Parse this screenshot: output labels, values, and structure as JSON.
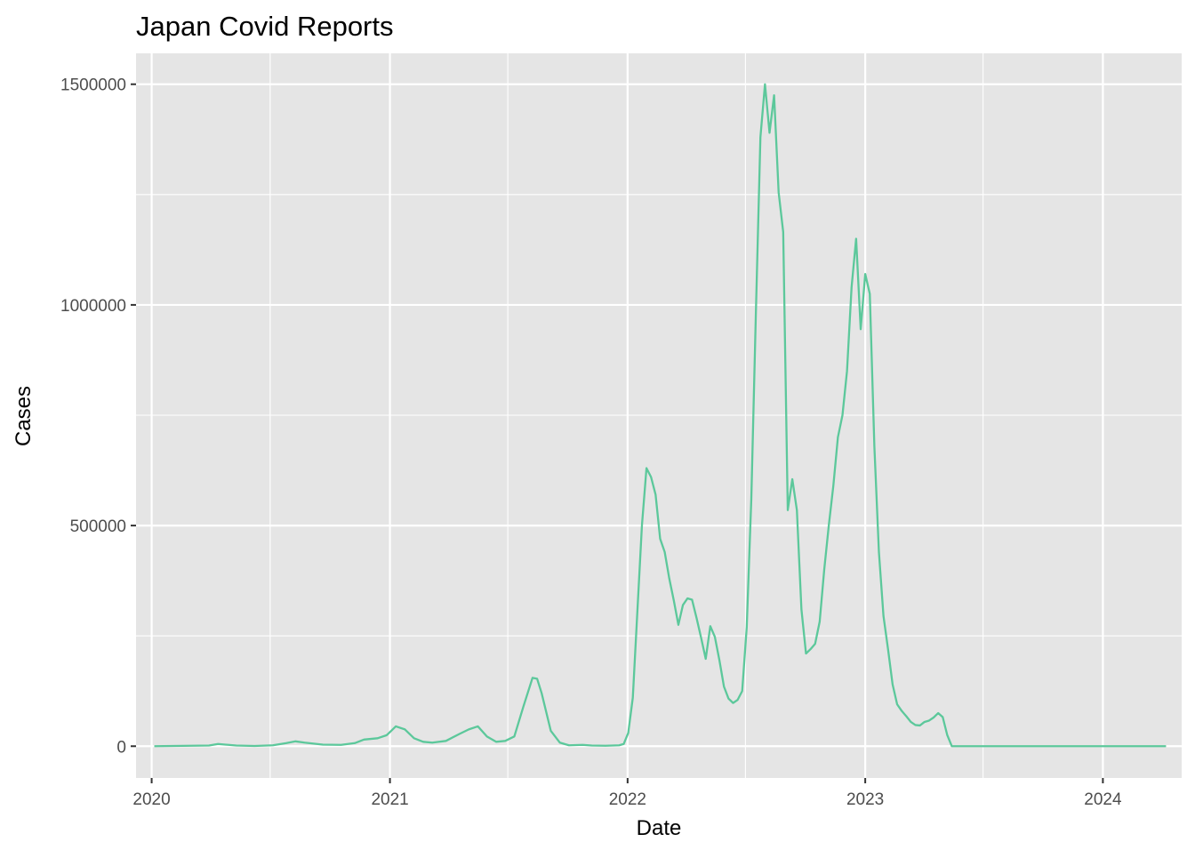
{
  "chart_data": {
    "type": "line",
    "title": "Japan Covid Reports",
    "xlabel": "Date",
    "ylabel": "Cases",
    "x_type": "date",
    "xlim": [
      "2019-12-08",
      "2024-05-01"
    ],
    "ylim": [
      -72000,
      1570000
    ],
    "x_ticks": [
      {
        "label": "2020",
        "value": "2020-01-01"
      },
      {
        "label": "2021",
        "value": "2021-01-01"
      },
      {
        "label": "2022",
        "value": "2022-01-01"
      },
      {
        "label": "2023",
        "value": "2023-01-01"
      },
      {
        "label": "2024",
        "value": "2024-01-01"
      }
    ],
    "x_minor_ticks": [
      "2020-07-01",
      "2021-07-01",
      "2022-07-01",
      "2023-07-01"
    ],
    "y_ticks": [
      0,
      500000,
      1000000,
      1500000
    ],
    "y_tick_labels": [
      "0",
      "500000",
      "1000000",
      "1500000"
    ],
    "y_minor_ticks": [
      250000,
      750000,
      1250000
    ],
    "grid": true,
    "colors": {
      "panel_background": "#e5e5e5",
      "gridline": "#ffffff",
      "series": "#5cc89b"
    },
    "series": [
      {
        "color": "#5cc89b",
        "points": [
          [
            "2020-01-05",
            0
          ],
          [
            "2020-03-29",
            1500
          ],
          [
            "2020-04-12",
            5000
          ],
          [
            "2020-05-10",
            1500
          ],
          [
            "2020-06-07",
            500
          ],
          [
            "2020-07-05",
            2000
          ],
          [
            "2020-07-26",
            7000
          ],
          [
            "2020-08-09",
            11000
          ],
          [
            "2020-08-23",
            8000
          ],
          [
            "2020-09-20",
            3500
          ],
          [
            "2020-10-18",
            3000
          ],
          [
            "2020-11-08",
            7000
          ],
          [
            "2020-11-22",
            15000
          ],
          [
            "2020-12-13",
            18000
          ],
          [
            "2020-12-27",
            25000
          ],
          [
            "2021-01-03",
            35000
          ],
          [
            "2021-01-10",
            45000
          ],
          [
            "2021-01-24",
            38000
          ],
          [
            "2021-02-07",
            18000
          ],
          [
            "2021-02-21",
            10000
          ],
          [
            "2021-03-07",
            8000
          ],
          [
            "2021-03-28",
            12000
          ],
          [
            "2021-04-18",
            28000
          ],
          [
            "2021-05-02",
            38000
          ],
          [
            "2021-05-16",
            45000
          ],
          [
            "2021-05-30",
            22000
          ],
          [
            "2021-06-13",
            10000
          ],
          [
            "2021-06-27",
            12000
          ],
          [
            "2021-07-11",
            22000
          ],
          [
            "2021-07-25",
            90000
          ],
          [
            "2021-08-08",
            155000
          ],
          [
            "2021-08-15",
            153000
          ],
          [
            "2021-08-22",
            120000
          ],
          [
            "2021-09-05",
            35000
          ],
          [
            "2021-09-19",
            8000
          ],
          [
            "2021-10-03",
            2000
          ],
          [
            "2021-10-24",
            3000
          ],
          [
            "2021-11-07",
            1500
          ],
          [
            "2021-11-28",
            1000
          ],
          [
            "2021-12-19",
            2000
          ],
          [
            "2021-12-26",
            5000
          ],
          [
            "2022-01-02",
            30000
          ],
          [
            "2022-01-09",
            110000
          ],
          [
            "2022-01-23",
            500000
          ],
          [
            "2022-01-30",
            630000
          ],
          [
            "2022-02-06",
            610000
          ],
          [
            "2022-02-13",
            570000
          ],
          [
            "2022-02-20",
            470000
          ],
          [
            "2022-02-27",
            440000
          ],
          [
            "2022-03-06",
            380000
          ],
          [
            "2022-03-13",
            330000
          ],
          [
            "2022-03-20",
            275000
          ],
          [
            "2022-03-27",
            320000
          ],
          [
            "2022-04-03",
            335000
          ],
          [
            "2022-04-10",
            332000
          ],
          [
            "2022-04-17",
            290000
          ],
          [
            "2022-04-24",
            245000
          ],
          [
            "2022-05-01",
            198000
          ],
          [
            "2022-05-08",
            272000
          ],
          [
            "2022-05-15",
            248000
          ],
          [
            "2022-05-22",
            195000
          ],
          [
            "2022-05-29",
            135000
          ],
          [
            "2022-06-05",
            108000
          ],
          [
            "2022-06-12",
            98000
          ],
          [
            "2022-06-19",
            105000
          ],
          [
            "2022-06-26",
            125000
          ],
          [
            "2022-07-03",
            270000
          ],
          [
            "2022-07-10",
            560000
          ],
          [
            "2022-07-17",
            980000
          ],
          [
            "2022-07-24",
            1380000
          ],
          [
            "2022-07-31",
            1500000
          ],
          [
            "2022-08-07",
            1390000
          ],
          [
            "2022-08-14",
            1475000
          ],
          [
            "2022-08-21",
            1255000
          ],
          [
            "2022-08-28",
            1165000
          ],
          [
            "2022-09-04",
            535000
          ],
          [
            "2022-09-11",
            605000
          ],
          [
            "2022-09-18",
            535000
          ],
          [
            "2022-09-25",
            310000
          ],
          [
            "2022-10-02",
            210000
          ],
          [
            "2022-10-09",
            220000
          ],
          [
            "2022-10-16",
            232000
          ],
          [
            "2022-10-23",
            282000
          ],
          [
            "2022-10-30",
            400000
          ],
          [
            "2022-11-06",
            500000
          ],
          [
            "2022-11-13",
            590000
          ],
          [
            "2022-11-20",
            700000
          ],
          [
            "2022-11-27",
            750000
          ],
          [
            "2022-12-04",
            850000
          ],
          [
            "2022-12-11",
            1040000
          ],
          [
            "2022-12-18",
            1150000
          ],
          [
            "2022-12-25",
            945000
          ],
          [
            "2023-01-01",
            1070000
          ],
          [
            "2023-01-08",
            1025000
          ],
          [
            "2023-01-15",
            680000
          ],
          [
            "2023-01-22",
            440000
          ],
          [
            "2023-01-29",
            295000
          ],
          [
            "2023-02-05",
            220000
          ],
          [
            "2023-02-12",
            140000
          ],
          [
            "2023-02-19",
            95000
          ],
          [
            "2023-02-26",
            80000
          ],
          [
            "2023-03-05",
            68000
          ],
          [
            "2023-03-12",
            55000
          ],
          [
            "2023-03-19",
            48000
          ],
          [
            "2023-03-26",
            47000
          ],
          [
            "2023-04-02",
            55000
          ],
          [
            "2023-04-09",
            58000
          ],
          [
            "2023-04-16",
            65000
          ],
          [
            "2023-04-23",
            75000
          ],
          [
            "2023-04-30",
            66000
          ],
          [
            "2023-05-07",
            25000
          ],
          [
            "2023-05-14",
            0
          ],
          [
            "2024-04-07",
            0
          ]
        ]
      }
    ]
  }
}
